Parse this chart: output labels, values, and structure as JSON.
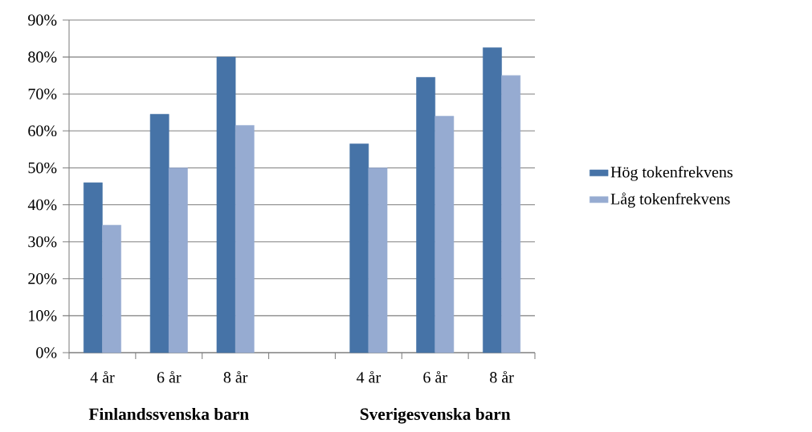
{
  "chart_data": {
    "type": "bar",
    "categories": [
      "4 år",
      "6 år",
      "8 år",
      null,
      "4 år",
      "6 år",
      "8 år"
    ],
    "series": [
      {
        "name": "Hög tokenfrekvens",
        "color": "#4673a7",
        "values": [
          46,
          64.5,
          80,
          null,
          56.5,
          74.5,
          82.5
        ]
      },
      {
        "name": "Låg tokenfrekvens",
        "color": "#96abd1",
        "values": [
          34.5,
          50,
          61.5,
          null,
          50,
          64,
          75
        ]
      }
    ],
    "ylim": [
      0,
      90
    ],
    "yticks": [
      {
        "value": 0,
        "label": "0%"
      },
      {
        "value": 10,
        "label": "10%"
      },
      {
        "value": 20,
        "label": "20%"
      },
      {
        "value": 30,
        "label": "30%"
      },
      {
        "value": 40,
        "label": "40%"
      },
      {
        "value": 50,
        "label": "50%"
      },
      {
        "value": 60,
        "label": "60%"
      },
      {
        "value": 70,
        "label": "70%"
      },
      {
        "value": 80,
        "label": "80%"
      },
      {
        "value": 90,
        "label": "90%"
      }
    ],
    "grid": "y",
    "legend": "right",
    "annotations": [
      "**Finlandssvenska barn**",
      "**Sverigesvenska barn**"
    ]
  }
}
